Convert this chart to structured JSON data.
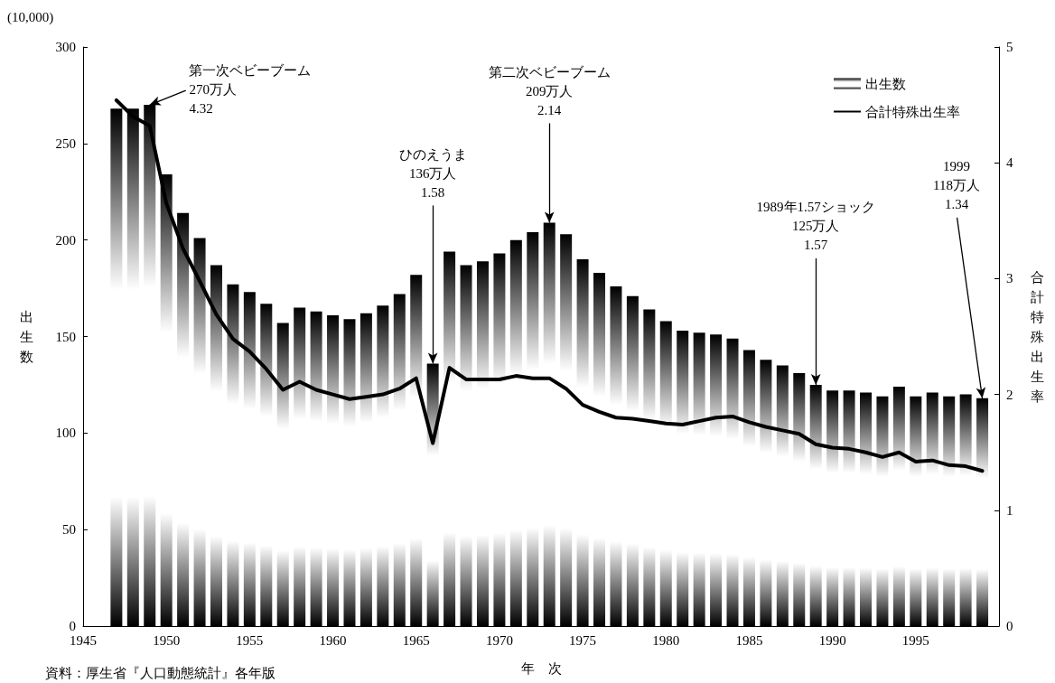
{
  "chart_data": {
    "type": "bar",
    "xlabel": "年　次",
    "ylabel": "出生数",
    "y2label": "合計特殊出生率",
    "x": [
      1947,
      1948,
      1949,
      1950,
      1951,
      1952,
      1953,
      1954,
      1955,
      1956,
      1957,
      1958,
      1959,
      1960,
      1961,
      1962,
      1963,
      1964,
      1965,
      1966,
      1967,
      1968,
      1969,
      1970,
      1971,
      1972,
      1973,
      1974,
      1975,
      1976,
      1977,
      1978,
      1979,
      1980,
      1981,
      1982,
      1983,
      1984,
      1985,
      1986,
      1987,
      1988,
      1989,
      1990,
      1991,
      1992,
      1993,
      1994,
      1995,
      1996,
      1997,
      1998,
      1999
    ],
    "series": [
      {
        "name": "出生数",
        "color": "#000000",
        "values": [
          268,
          268,
          270,
          234,
          214,
          201,
          187,
          177,
          173,
          167,
          157,
          165,
          163,
          161,
          159,
          162,
          166,
          172,
          182,
          136,
          194,
          187,
          189,
          193,
          200,
          204,
          209,
          203,
          190,
          183,
          176,
          171,
          164,
          158,
          153,
          152,
          151,
          149,
          143,
          138,
          135,
          131,
          125,
          122,
          122,
          121,
          119,
          124,
          119,
          121,
          119,
          120,
          118
        ]
      },
      {
        "name": "合計特殊出生率",
        "type": "line",
        "axis": "y2",
        "color": "#000000",
        "values": [
          4.54,
          4.4,
          4.32,
          3.65,
          3.26,
          2.98,
          2.69,
          2.48,
          2.37,
          2.22,
          2.04,
          2.11,
          2.04,
          2.0,
          1.96,
          1.98,
          2.0,
          2.05,
          2.14,
          1.58,
          2.23,
          2.13,
          2.13,
          2.13,
          2.16,
          2.14,
          2.14,
          2.05,
          1.91,
          1.85,
          1.8,
          1.79,
          1.77,
          1.75,
          1.74,
          1.77,
          1.8,
          1.81,
          1.76,
          1.72,
          1.69,
          1.66,
          1.57,
          1.54,
          1.53,
          1.5,
          1.46,
          1.5,
          1.42,
          1.43,
          1.39,
          1.38,
          1.34
        ]
      }
    ],
    "xlim": [
      1945,
      2000
    ],
    "xticks": [
      1945,
      1950,
      1955,
      1960,
      1965,
      1970,
      1975,
      1980,
      1985,
      1990,
      1995
    ],
    "ylim": [
      0,
      300
    ],
    "yticks": [
      0,
      50,
      100,
      150,
      200,
      250,
      300
    ],
    "y2lim": [
      0,
      5
    ],
    "y2ticks": [
      0,
      1,
      2,
      3,
      4,
      5
    ],
    "grid": false,
    "legend": "top right",
    "marker": "none",
    "line_style": "solid",
    "annotations": [
      {
        "text": "第一次ベビーブーム\n270万人\n4.32",
        "x": 1949,
        "y": 270
      },
      {
        "text": "ひのえうま\n136万人\n1.58",
        "x": 1966,
        "y": 136
      },
      {
        "text": "第二次ベビーブーム\n209万人\n2.14",
        "x": 1973,
        "y": 209
      },
      {
        "text": "1989年1.57ショック\n125万人\n1.57",
        "x": 1989,
        "y": 125
      },
      {
        "text": "1999\n118万人\n1.34",
        "x": 1999,
        "y": 118
      },
      "(10,000)",
      "資料：厚生省『人口動態統計』各年版"
    ]
  }
}
